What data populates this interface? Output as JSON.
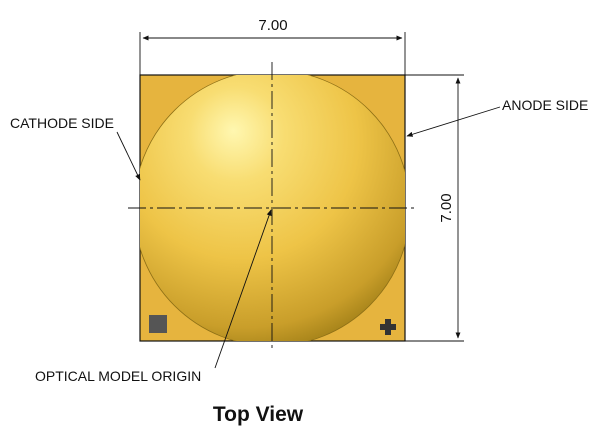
{
  "dimensions": {
    "width_label": "7.00",
    "height_label": "7.00"
  },
  "callouts": {
    "cathode": "CATHODE SIDE",
    "anode": "ANODE SIDE",
    "origin": "OPTICAL MODEL ORIGIN"
  },
  "caption": "Top View",
  "markings": {
    "cathode_mark": "square-mark-icon",
    "anode_mark": "plus-mark-icon"
  },
  "colors": {
    "substrate": "#E6B43E",
    "dome_highlight": "#FFF7B0",
    "dome_mid": "#EEC447",
    "dome_shadow": "#9A7A14",
    "cathode_mark": "#555555",
    "anode_mark": "#333333",
    "line": "#111111"
  }
}
